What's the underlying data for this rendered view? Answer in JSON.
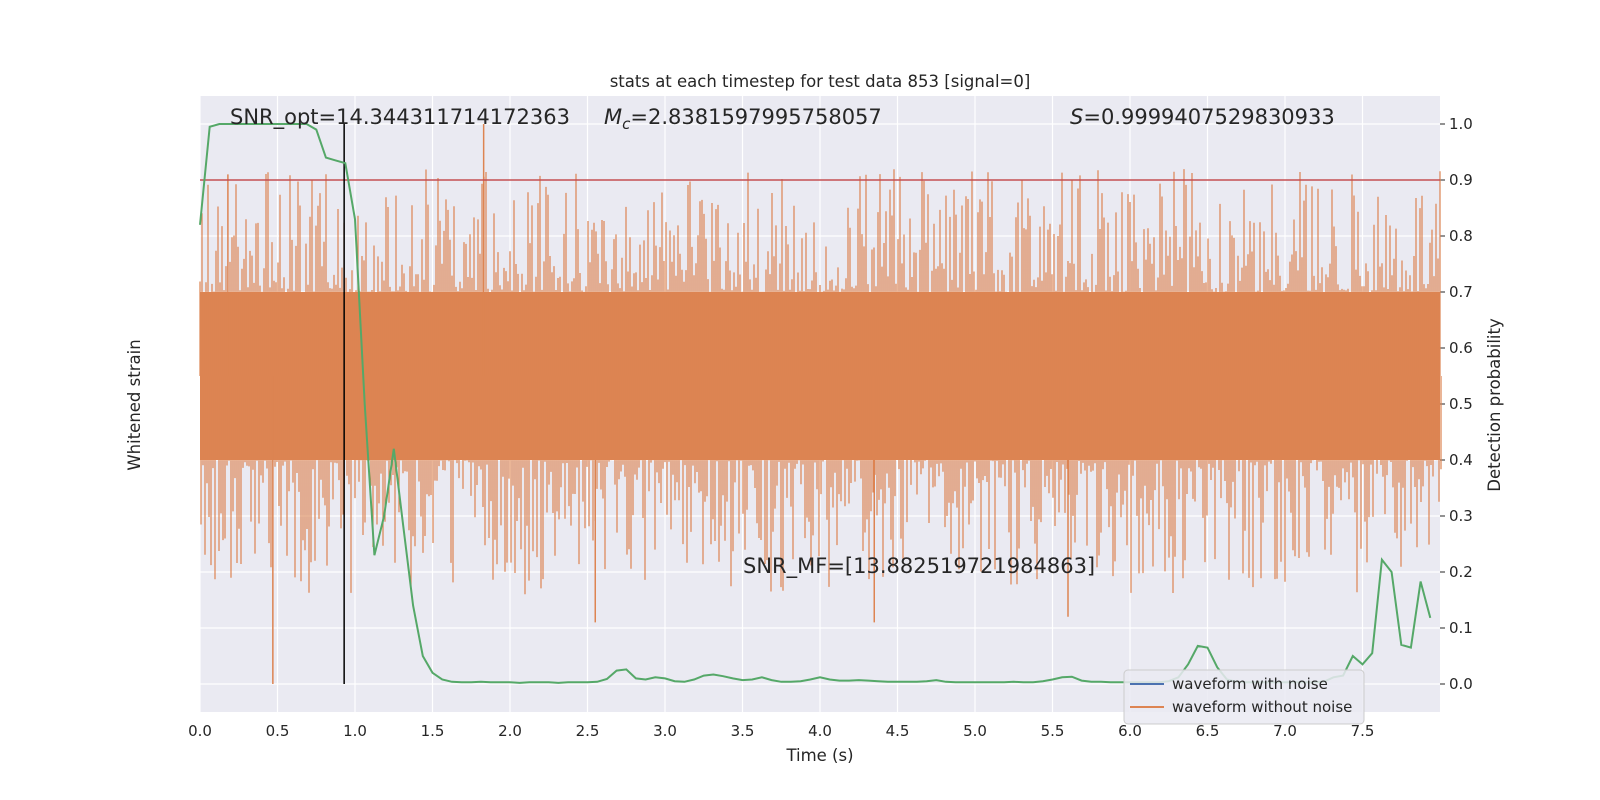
{
  "chart_data": {
    "type": "line",
    "title": "stats at each timestep for test data 853 [signal=0]",
    "xlabel": "Time (s)",
    "ylabel_left": "Whitened strain",
    "ylabel_right": "Detection probability",
    "xlim": [
      0,
      8
    ],
    "ylim_right": [
      -0.05,
      1.05
    ],
    "x_ticks": [
      "0.0",
      "0.5",
      "1.0",
      "1.5",
      "2.0",
      "2.5",
      "3.0",
      "3.5",
      "4.0",
      "4.5",
      "5.0",
      "5.5",
      "6.0",
      "6.5",
      "7.0",
      "7.5"
    ],
    "y_right_ticks": [
      "0.0",
      "0.1",
      "0.2",
      "0.3",
      "0.4",
      "0.5",
      "0.6",
      "0.7",
      "0.8",
      "0.9",
      "1.0"
    ],
    "grid": true,
    "annotations": {
      "snr_opt": "SNR_opt=14.344311714172363",
      "mc_symbol": "M",
      "mc_sub": "c",
      "mc_value": "=2.8381597995758057",
      "s_symbol": "S",
      "s_value": "=0.9999407529830933",
      "snr_mf": "SNR_MF=[13.882519721984863]"
    },
    "threshold": 0.9,
    "marker_time": 0.93,
    "series": [
      {
        "name": "waveform with noise",
        "color": "#4c72b0"
      },
      {
        "name": "waveform without noise",
        "color": "#dd8452"
      }
    ],
    "probability_color": "#55a868",
    "threshold_color": "#c44e52",
    "probability": {
      "x": [
        0.0,
        0.0625,
        0.125,
        0.1875,
        0.25,
        0.3125,
        0.375,
        0.4375,
        0.5,
        0.5625,
        0.625,
        0.6875,
        0.75,
        0.8125,
        0.875,
        0.9375,
        1.0,
        1.0625,
        1.125,
        1.1875,
        1.25,
        1.3125,
        1.375,
        1.4375,
        1.5,
        1.5625,
        1.625,
        1.6875,
        1.75,
        1.8125,
        1.875,
        1.9375,
        2.0,
        2.0625,
        2.125,
        2.1875,
        2.25,
        2.3125,
        2.375,
        2.4375,
        2.5,
        2.5625,
        2.625,
        2.6875,
        2.75,
        2.8125,
        2.875,
        2.9375,
        3.0,
        3.0625,
        3.125,
        3.1875,
        3.25,
        3.3125,
        3.375,
        3.4375,
        3.5,
        3.5625,
        3.625,
        3.6875,
        3.75,
        3.8125,
        3.875,
        3.9375,
        4.0,
        4.0625,
        4.125,
        4.1875,
        4.25,
        4.3125,
        4.375,
        4.4375,
        4.5,
        4.5625,
        4.625,
        4.6875,
        4.75,
        4.8125,
        4.875,
        4.9375,
        5.0,
        5.0625,
        5.125,
        5.1875,
        5.25,
        5.3125,
        5.375,
        5.4375,
        5.5,
        5.5625,
        5.625,
        5.6875,
        5.75,
        5.8125,
        5.875,
        5.9375,
        6.0,
        6.0625,
        6.125,
        6.1875,
        6.25,
        6.3125,
        6.375,
        6.4375,
        6.5,
        6.5625,
        6.625,
        6.6875,
        6.75,
        6.8125,
        6.875,
        6.9375,
        7.0,
        7.0625,
        7.125,
        7.1875,
        7.25,
        7.3125,
        7.375,
        7.4375,
        7.5,
        7.5625,
        7.625,
        7.6875,
        7.75,
        7.8125,
        7.875,
        7.9375
      ],
      "y": [
        0.82,
        0.995,
        1.0,
        1.0,
        1.0,
        1.0,
        1.0,
        1.0,
        1.0,
        1.0,
        1.0,
        1.0,
        0.99,
        0.94,
        0.935,
        0.93,
        0.83,
        0.5,
        0.23,
        0.3,
        0.42,
        0.28,
        0.14,
        0.05,
        0.02,
        0.008,
        0.004,
        0.003,
        0.003,
        0.004,
        0.003,
        0.003,
        0.003,
        0.002,
        0.003,
        0.003,
        0.003,
        0.002,
        0.003,
        0.003,
        0.003,
        0.004,
        0.009,
        0.024,
        0.026,
        0.01,
        0.008,
        0.012,
        0.01,
        0.005,
        0.004,
        0.008,
        0.015,
        0.017,
        0.014,
        0.01,
        0.007,
        0.008,
        0.012,
        0.007,
        0.004,
        0.004,
        0.005,
        0.008,
        0.012,
        0.008,
        0.006,
        0.006,
        0.007,
        0.006,
        0.005,
        0.004,
        0.004,
        0.004,
        0.004,
        0.005,
        0.007,
        0.004,
        0.003,
        0.003,
        0.003,
        0.003,
        0.003,
        0.003,
        0.004,
        0.003,
        0.003,
        0.005,
        0.008,
        0.012,
        0.013,
        0.006,
        0.004,
        0.004,
        0.003,
        0.003,
        0.003,
        0.003,
        0.003,
        0.003,
        0.005,
        0.012,
        0.035,
        0.068,
        0.065,
        0.03,
        0.008,
        0.004,
        0.003,
        0.003,
        0.003,
        0.003,
        0.003,
        0.003,
        0.003,
        0.003,
        0.004,
        0.012,
        0.015,
        0.05,
        0.035,
        0.055,
        0.222,
        0.2,
        0.07,
        0.065,
        0.183,
        0.118
      ]
    }
  }
}
